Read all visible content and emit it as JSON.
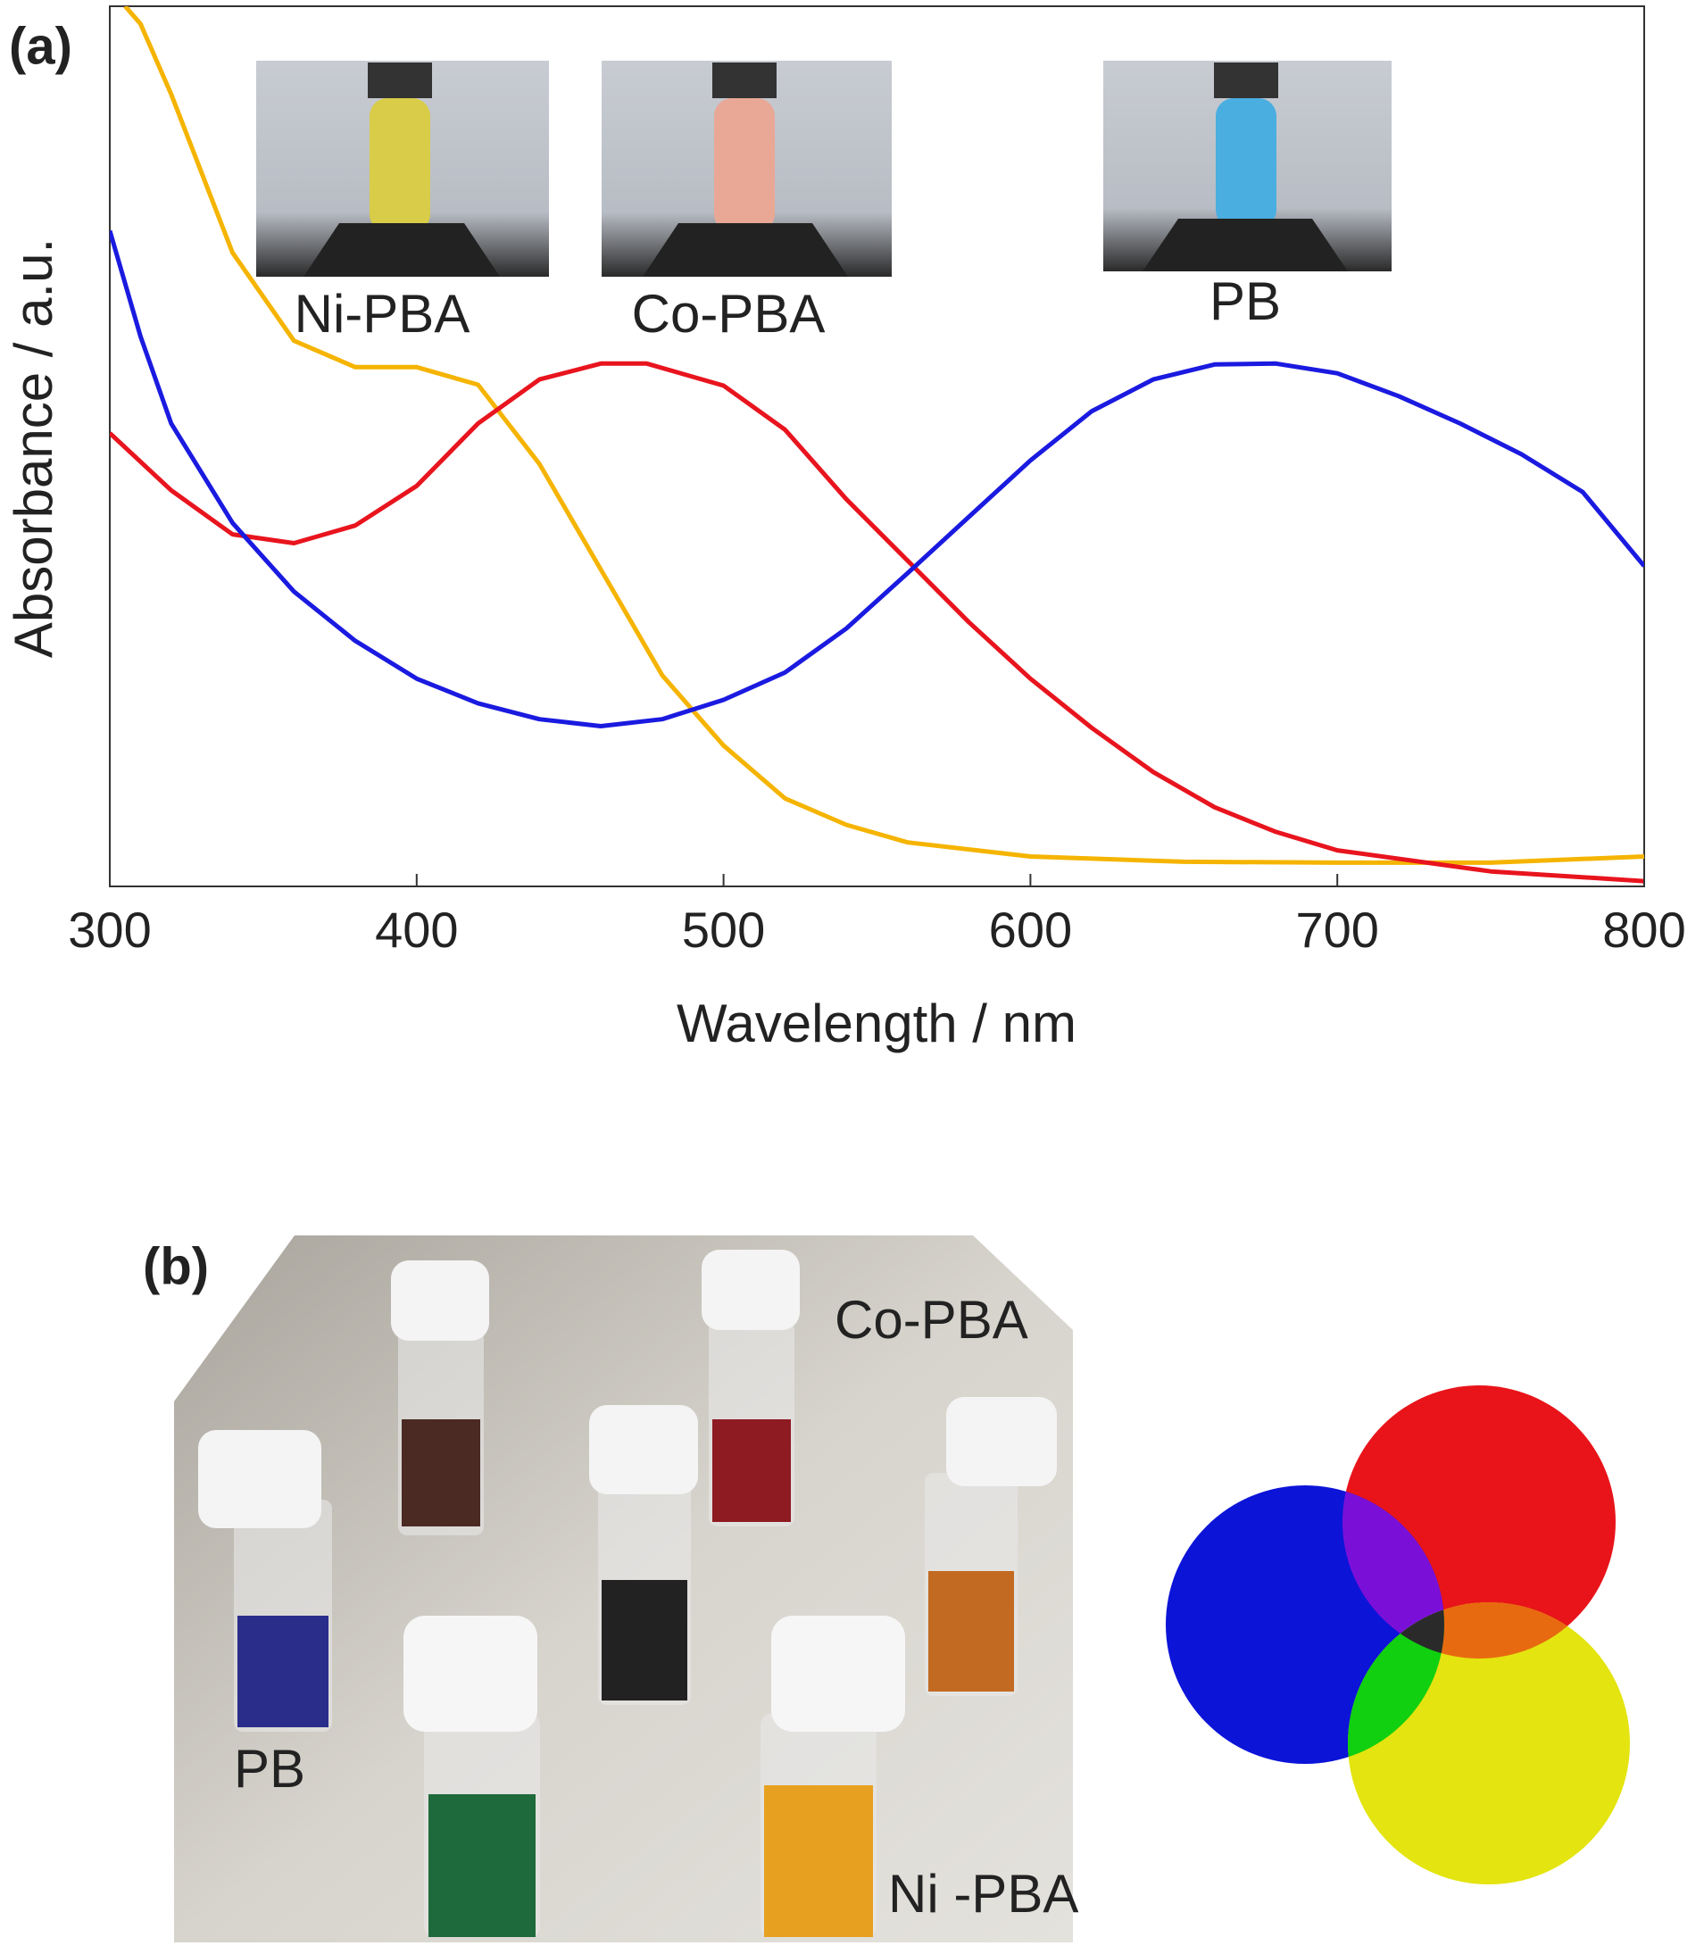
{
  "chart_data": {
    "type": "line",
    "panel_label": "(a)",
    "xlabel": "Wavelength / nm",
    "ylabel": "Absorbance / a.u.",
    "xlim": [
      300,
      800
    ],
    "xticks": [
      300,
      400,
      500,
      600,
      700,
      800
    ],
    "ylim": [
      0,
      100
    ],
    "grid": false,
    "series": [
      {
        "name": "Ni-PBA",
        "color": "#f5b400",
        "x": [
          305,
          310,
          320,
          340,
          360,
          380,
          400,
          420,
          440,
          460,
          480,
          500,
          520,
          540,
          560,
          600,
          650,
          700,
          750,
          800
        ],
        "values": [
          100,
          98,
          90,
          72,
          62,
          59,
          59,
          57,
          48,
          36,
          24,
          16,
          10,
          7,
          5,
          3.4,
          2.8,
          2.7,
          2.7,
          3.4
        ]
      },
      {
        "name": "Co-PBA",
        "color": "#e8141e",
        "x": [
          300,
          320,
          340,
          360,
          380,
          400,
          420,
          440,
          460,
          475,
          500,
          520,
          540,
          560,
          580,
          600,
          620,
          640,
          660,
          680,
          700,
          750,
          800
        ],
        "values": [
          51.5,
          45,
          40,
          39,
          41,
          45.5,
          52.6,
          57.6,
          59.4,
          59.4,
          56.9,
          51.9,
          44,
          37,
          30,
          23.6,
          18,
          13,
          9,
          6.2,
          4.1,
          1.7,
          0.6
        ]
      },
      {
        "name": "PB",
        "color": "#1a1ae0",
        "x": [
          300,
          310,
          320,
          340,
          360,
          380,
          400,
          420,
          440,
          460,
          480,
          500,
          520,
          540,
          560,
          580,
          600,
          620,
          640,
          660,
          680,
          700,
          720,
          740,
          760,
          780,
          800
        ],
        "values": [
          74.5,
          62.5,
          52.6,
          41.3,
          33.5,
          27.9,
          23.6,
          20.8,
          19,
          18.2,
          19,
          21.2,
          24.3,
          29.3,
          35.6,
          42,
          48.4,
          54,
          57.6,
          59.3,
          59.4,
          58.3,
          55.7,
          52.6,
          49.1,
          44.8,
          36.4
        ]
      }
    ]
  },
  "panel_b": {
    "label": "(b)",
    "photo_labels": [
      "Co-PBA",
      "PB",
      "Ni -PBA"
    ]
  }
}
